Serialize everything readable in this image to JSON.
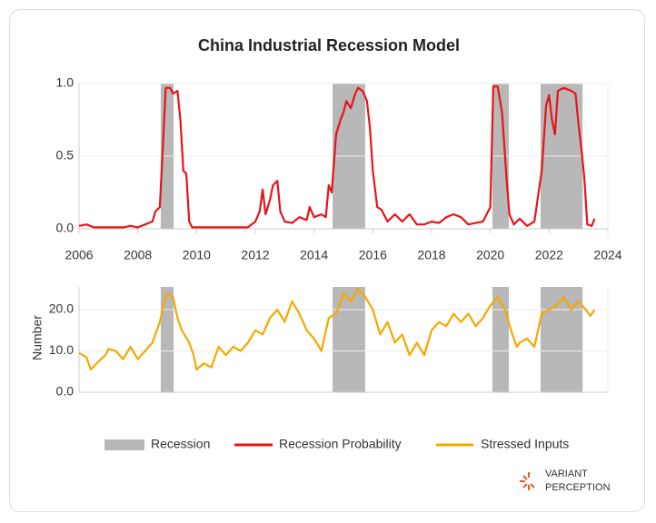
{
  "logo": [
    "VARIANT",
    "PERCEPTION"
  ],
  "chart_data": [
    {
      "type": "line",
      "title": "China Industrial Recession Model",
      "xlim": [
        2006,
        2024
      ],
      "xticks": [
        2006,
        2008,
        2010,
        2012,
        2014,
        2016,
        2018,
        2020,
        2022,
        2024
      ],
      "ylim": [
        0,
        1
      ],
      "yticks": [
        {
          "value": 0,
          "label": "0.0"
        },
        {
          "value": 0.5,
          "label": "0.5"
        },
        {
          "value": 1,
          "label": "1.0"
        }
      ],
      "grid": true,
      "recessions": {
        "name": "Recession",
        "color": "#b8b8b8",
        "periods": [
          [
            2008.78,
            2009.22
          ],
          [
            2014.63,
            2015.74
          ],
          [
            2020.07,
            2020.63
          ],
          [
            2021.71,
            2023.14
          ]
        ]
      },
      "x": [
        2006.0,
        2006.25,
        2006.5,
        2006.75,
        2007.0,
        2007.25,
        2007.5,
        2007.75,
        2008.0,
        2008.25,
        2008.5,
        2008.6,
        2008.75,
        2008.85,
        2008.95,
        2009.1,
        2009.2,
        2009.35,
        2009.45,
        2009.55,
        2009.65,
        2009.75,
        2009.85,
        2010.25,
        2010.75,
        2011.25,
        2011.75,
        2012.0,
        2012.15,
        2012.25,
        2012.35,
        2012.5,
        2012.6,
        2012.75,
        2012.85,
        2013.0,
        2013.25,
        2013.5,
        2013.75,
        2013.85,
        2014.0,
        2014.25,
        2014.4,
        2014.5,
        2014.6,
        2014.75,
        2014.9,
        2015.0,
        2015.1,
        2015.25,
        2015.4,
        2015.5,
        2015.65,
        2015.8,
        2015.9,
        2016.0,
        2016.15,
        2016.3,
        2016.5,
        2016.75,
        2017.0,
        2017.25,
        2017.5,
        2017.75,
        2018.0,
        2018.25,
        2018.5,
        2018.75,
        2019.0,
        2019.25,
        2019.5,
        2019.75,
        2020.0,
        2020.1,
        2020.25,
        2020.4,
        2020.55,
        2020.65,
        2020.8,
        2021.0,
        2021.25,
        2021.5,
        2021.75,
        2021.9,
        2022.0,
        2022.1,
        2022.2,
        2022.3,
        2022.5,
        2022.75,
        2022.9,
        2023.0,
        2023.1,
        2023.2,
        2023.3,
        2023.45,
        2023.55
      ],
      "series": [
        {
          "name": "Recession Probability",
          "color": "#e8141b",
          "values": [
            0.02,
            0.03,
            0.01,
            0.01,
            0.01,
            0.01,
            0.01,
            0.02,
            0.01,
            0.03,
            0.05,
            0.12,
            0.15,
            0.55,
            0.97,
            0.97,
            0.93,
            0.95,
            0.75,
            0.4,
            0.38,
            0.05,
            0.01,
            0.01,
            0.01,
            0.01,
            0.01,
            0.05,
            0.12,
            0.27,
            0.1,
            0.2,
            0.3,
            0.33,
            0.12,
            0.05,
            0.04,
            0.08,
            0.06,
            0.15,
            0.08,
            0.1,
            0.08,
            0.3,
            0.25,
            0.65,
            0.75,
            0.8,
            0.88,
            0.83,
            0.93,
            0.97,
            0.95,
            0.88,
            0.7,
            0.4,
            0.15,
            0.13,
            0.05,
            0.1,
            0.05,
            0.1,
            0.03,
            0.03,
            0.05,
            0.04,
            0.08,
            0.1,
            0.08,
            0.03,
            0.04,
            0.05,
            0.15,
            0.98,
            0.98,
            0.8,
            0.35,
            0.1,
            0.03,
            0.07,
            0.02,
            0.05,
            0.4,
            0.85,
            0.92,
            0.75,
            0.65,
            0.95,
            0.97,
            0.95,
            0.93,
            0.72,
            0.55,
            0.35,
            0.03,
            0.02,
            0.07
          ]
        }
      ]
    },
    {
      "type": "line",
      "y_label": "Number",
      "xlim": [
        2006,
        2024
      ],
      "ylim": [
        0,
        25.5
      ],
      "yticks": [
        {
          "value": 0,
          "label": "0.0"
        },
        {
          "value": 10,
          "label": "10.0"
        },
        {
          "value": 20,
          "label": "20.0"
        }
      ],
      "grid": true,
      "x": [
        2006.0,
        2006.25,
        2006.4,
        2006.6,
        2006.9,
        2007.0,
        2007.25,
        2007.5,
        2007.75,
        2008.0,
        2008.25,
        2008.5,
        2008.75,
        2008.9,
        2009.0,
        2009.2,
        2009.35,
        2009.5,
        2009.75,
        2009.9,
        2010.0,
        2010.25,
        2010.5,
        2010.75,
        2011.0,
        2011.25,
        2011.5,
        2011.75,
        2012.0,
        2012.25,
        2012.5,
        2012.75,
        2013.0,
        2013.25,
        2013.5,
        2013.75,
        2014.0,
        2014.25,
        2014.5,
        2014.75,
        2015.0,
        2015.25,
        2015.5,
        2015.75,
        2016.0,
        2016.25,
        2016.5,
        2016.75,
        2017.0,
        2017.25,
        2017.5,
        2017.75,
        2018.0,
        2018.25,
        2018.5,
        2018.75,
        2019.0,
        2019.25,
        2019.5,
        2019.75,
        2020.0,
        2020.25,
        2020.5,
        2020.75,
        2020.9,
        2021.0,
        2021.25,
        2021.5,
        2021.75,
        2022.0,
        2022.25,
        2022.5,
        2022.75,
        2023.0,
        2023.25,
        2023.4,
        2023.55
      ],
      "series": [
        {
          "name": "Stressed Inputs",
          "color": "#f5a800",
          "values": [
            9.5,
            8.5,
            5.5,
            7,
            9,
            10.5,
            10,
            8,
            11,
            8,
            10,
            12,
            17,
            22,
            24,
            23,
            18,
            15,
            12,
            9,
            5.5,
            7,
            6,
            11,
            9,
            11,
            10,
            12,
            15,
            14,
            18,
            20,
            17,
            22,
            19,
            15,
            13,
            10,
            18,
            19,
            24,
            22,
            25,
            23,
            20,
            14,
            17,
            12,
            14,
            9,
            12,
            9,
            15,
            17,
            16,
            19,
            17,
            19,
            16,
            18,
            21,
            23,
            20,
            14,
            11,
            12,
            13,
            11,
            19,
            20,
            21,
            23,
            20,
            22,
            20,
            18.5,
            20
          ]
        }
      ]
    }
  ]
}
